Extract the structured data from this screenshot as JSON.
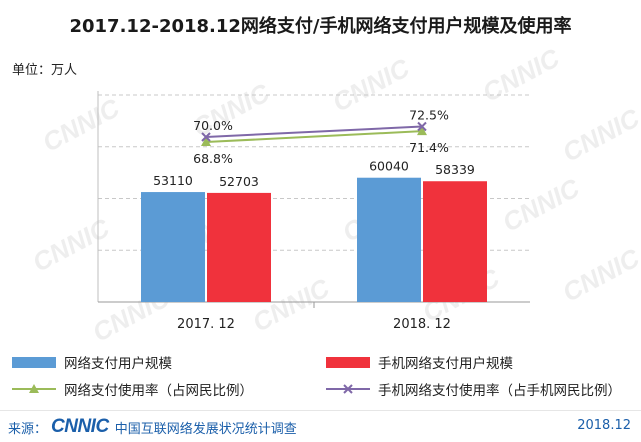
{
  "title": "2017.12-2018.12网络支付/手机网络支付用户规模及使用率",
  "unit_label": "单位：万人",
  "legend": {
    "bar1": "网络支付用户规模",
    "bar2": "手机网络支付用户规模",
    "line1": "网络支付使用率（占网民比例）",
    "line2": "手机网络支付使用率（占手机网民比例）"
  },
  "footer": {
    "source_label": "来源：",
    "logo_text": "CNNIC",
    "source_org": "中国互联网络发展状况统计调查",
    "date": "2018.12"
  },
  "watermark_text": "CNNIC",
  "colors": {
    "bar1": "#5b9bd5",
    "bar2": "#f0323c",
    "line1": "#9bbb59",
    "line2": "#7f68a8"
  },
  "chart_data": {
    "type": "bar",
    "categories": [
      "2017. 12",
      "2018. 12"
    ],
    "series": [
      {
        "name": "网络支付用户规模",
        "kind": "bar",
        "values": [
          53110,
          60040
        ]
      },
      {
        "name": "手机网络支付用户规模",
        "kind": "bar",
        "values": [
          52703,
          58339
        ]
      },
      {
        "name": "网络支付使用率（占网民比例）",
        "kind": "line",
        "values": [
          68.8,
          71.4
        ],
        "labels": [
          "68.8%",
          "71.4%"
        ]
      },
      {
        "name": "手机网络支付使用率（占手机网民比例）",
        "kind": "line",
        "values": [
          70.0,
          72.5
        ],
        "labels": [
          "70.0%",
          "72.5%"
        ]
      }
    ],
    "ylim": [
      0,
      100000
    ],
    "grid": true,
    "legend_position": "bottom"
  }
}
